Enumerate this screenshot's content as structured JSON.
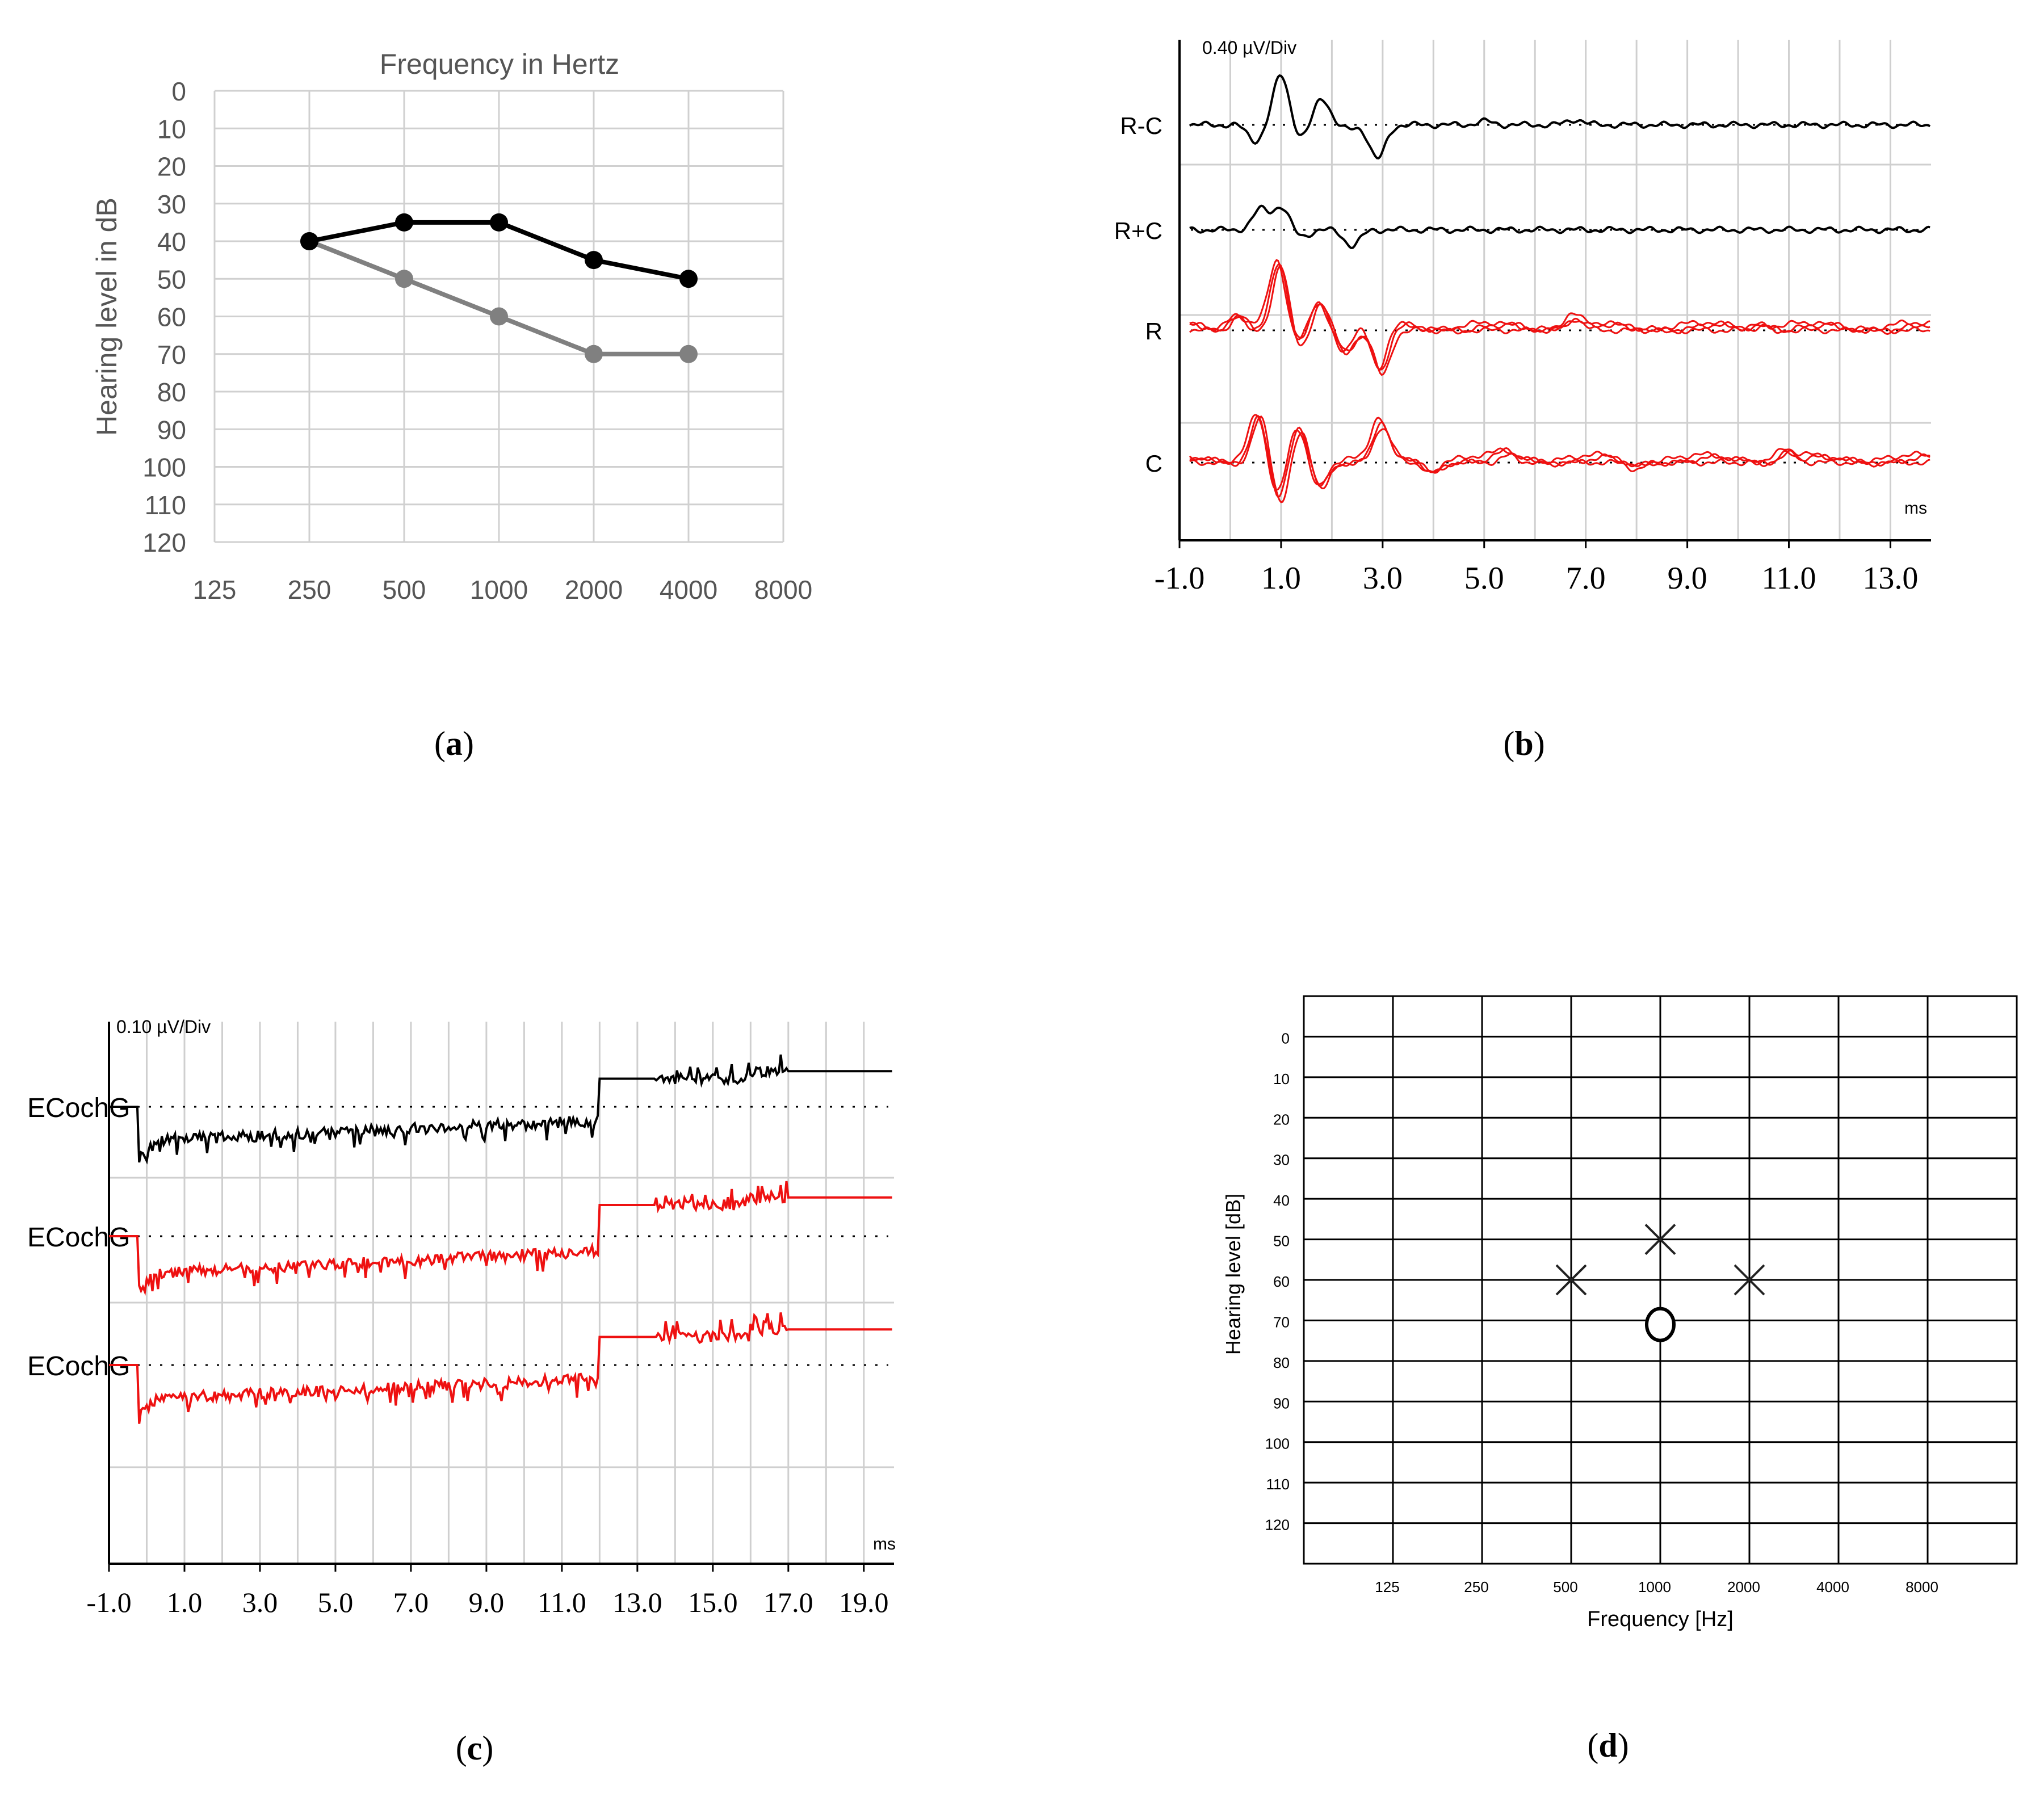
{
  "panel_labels": {
    "a": {
      "open": "(",
      "letter": "a",
      "close": ")"
    },
    "b": {
      "open": "(",
      "letter": "b",
      "close": ")"
    },
    "c": {
      "open": "(",
      "letter": "c",
      "close": ")"
    },
    "d": {
      "open": "(",
      "letter": "d",
      "close": ")"
    }
  },
  "colors": {
    "black": "#000000",
    "gray": "#808080",
    "red": "#ee1111",
    "grid": "#d0d0d0",
    "dark": "#222222"
  },
  "chart_data": [
    {
      "id": "a",
      "type": "line",
      "title": "Frequency in Hertz",
      "xlabel": "",
      "ylabel": "Hearing level in dB",
      "categories": [
        "125",
        "250",
        "500",
        "1000",
        "2000",
        "4000",
        "8000"
      ],
      "y_ticks": [
        "0",
        "10",
        "20",
        "30",
        "40",
        "50",
        "60",
        "70",
        "80",
        "90",
        "100",
        "110",
        "120"
      ],
      "ylim": [
        0,
        120
      ],
      "y_inverted": true,
      "grid": true,
      "series": [
        {
          "name": "black series",
          "color": "#000000",
          "x": [
            "250",
            "500",
            "1000",
            "2000",
            "4000"
          ],
          "values": [
            40,
            35,
            35,
            45,
            50
          ]
        },
        {
          "name": "gray series",
          "color": "#808080",
          "x": [
            "250",
            "500",
            "1000",
            "2000",
            "4000"
          ],
          "values": [
            40,
            50,
            60,
            70,
            70
          ]
        }
      ]
    },
    {
      "id": "b",
      "type": "line",
      "title": "",
      "scale_label": "0.40 µV/Div",
      "unit_label": "ms",
      "xlabel": "",
      "x_ticks": [
        "-1.0",
        "1.0",
        "3.0",
        "5.0",
        "7.0",
        "9.0",
        "11.0",
        "13.0"
      ],
      "xlim": [
        -1.0,
        13.8
      ],
      "grid": true,
      "traces": [
        {
          "label": "R-C",
          "color": "#000000",
          "events": [
            [
              0.5,
              0.0,
              -0.35
            ],
            [
              1.0,
              0.0,
              1.1
            ],
            [
              1.4,
              0.0,
              -0.3
            ],
            [
              1.8,
              0.0,
              0.6
            ],
            [
              2.3,
              0.0,
              -0.1
            ],
            [
              2.9,
              0.0,
              -0.75
            ],
            [
              5.0,
              0.0,
              0.08
            ],
            [
              6.8,
              0.0,
              0.12
            ]
          ]
        },
        {
          "label": "R+C",
          "color": "#000000",
          "events": [
            [
              0.6,
              0.0,
              0.45
            ],
            [
              1.0,
              0.0,
              0.5
            ],
            [
              1.4,
              0.0,
              -0.15
            ],
            [
              2.4,
              0.0,
              -0.35
            ]
          ]
        },
        {
          "label": "R",
          "color": "#ee1111",
          "events": [
            [
              0.2,
              0.0,
              0.3
            ],
            [
              1.0,
              0.0,
              1.4
            ],
            [
              1.4,
              0.0,
              -0.4
            ],
            [
              1.8,
              0.0,
              0.6
            ],
            [
              2.3,
              0.0,
              -0.5
            ],
            [
              3.0,
              0.0,
              -1.0
            ],
            [
              6.8,
              0.0,
              0.25
            ],
            [
              10.5,
              0.0,
              0.1
            ]
          ]
        },
        {
          "label": "C",
          "color": "#ee1111",
          "events": [
            [
              0.6,
              0.0,
              1.0
            ],
            [
              1.0,
              0.0,
              -0.9
            ],
            [
              1.4,
              0.0,
              0.7
            ],
            [
              1.8,
              0.0,
              -0.6
            ],
            [
              3.0,
              0.0,
              0.8
            ],
            [
              4.0,
              0.0,
              -0.25
            ],
            [
              5.5,
              0.0,
              0.15
            ],
            [
              8.0,
              0.0,
              -0.15
            ],
            [
              11.0,
              0.0,
              0.2
            ]
          ]
        }
      ]
    },
    {
      "id": "c",
      "type": "line",
      "title": "",
      "scale_label": "0.10 µV/Div",
      "unit_label": "ms",
      "xlabel": "",
      "x_ticks": [
        "-1.0",
        "1.0",
        "3.0",
        "5.0",
        "7.0",
        "9.0",
        "11.0",
        "13.0",
        "15.0",
        "17.0",
        "19.0"
      ],
      "xlim": [
        -1.0,
        19.8
      ],
      "grid": true,
      "traces": [
        {
          "label": "ECochG",
          "color": "#000000",
          "baseline": 0.0,
          "drop_at": -0.2,
          "low_level": -0.55,
          "rise_at": 12.0,
          "high_level": 0.45
        },
        {
          "label": "ECochG",
          "color": "#ee1111",
          "baseline": 0.0,
          "drop_at": -0.2,
          "low_level": -0.6,
          "rise_at": 12.0,
          "high_level": 0.5
        },
        {
          "label": "ECochG",
          "color": "#ee1111",
          "baseline": 0.0,
          "drop_at": -0.2,
          "low_level": -0.55,
          "rise_at": 12.0,
          "high_level": 0.45
        }
      ]
    },
    {
      "id": "d",
      "type": "scatter",
      "title": "",
      "xlabel": "Frequency [Hz]",
      "ylabel": "Hearing level [dB]",
      "categories": [
        "125",
        "250",
        "500",
        "1000",
        "2000",
        "4000",
        "8000"
      ],
      "y_ticks": [
        "0",
        "10",
        "20",
        "30",
        "40",
        "50",
        "60",
        "70",
        "80",
        "90",
        "100",
        "110",
        "120"
      ],
      "ylim": [
        -10,
        130
      ],
      "y_inverted": true,
      "grid": true,
      "series": [
        {
          "name": "X markers",
          "marker": "x",
          "color": "#222222",
          "x": [
            "500",
            "1000",
            "2000"
          ],
          "values": [
            60,
            50,
            60
          ]
        },
        {
          "name": "O marker",
          "marker": "o",
          "color": "#000000",
          "x": [
            "1000"
          ],
          "values": [
            71
          ]
        }
      ]
    }
  ]
}
